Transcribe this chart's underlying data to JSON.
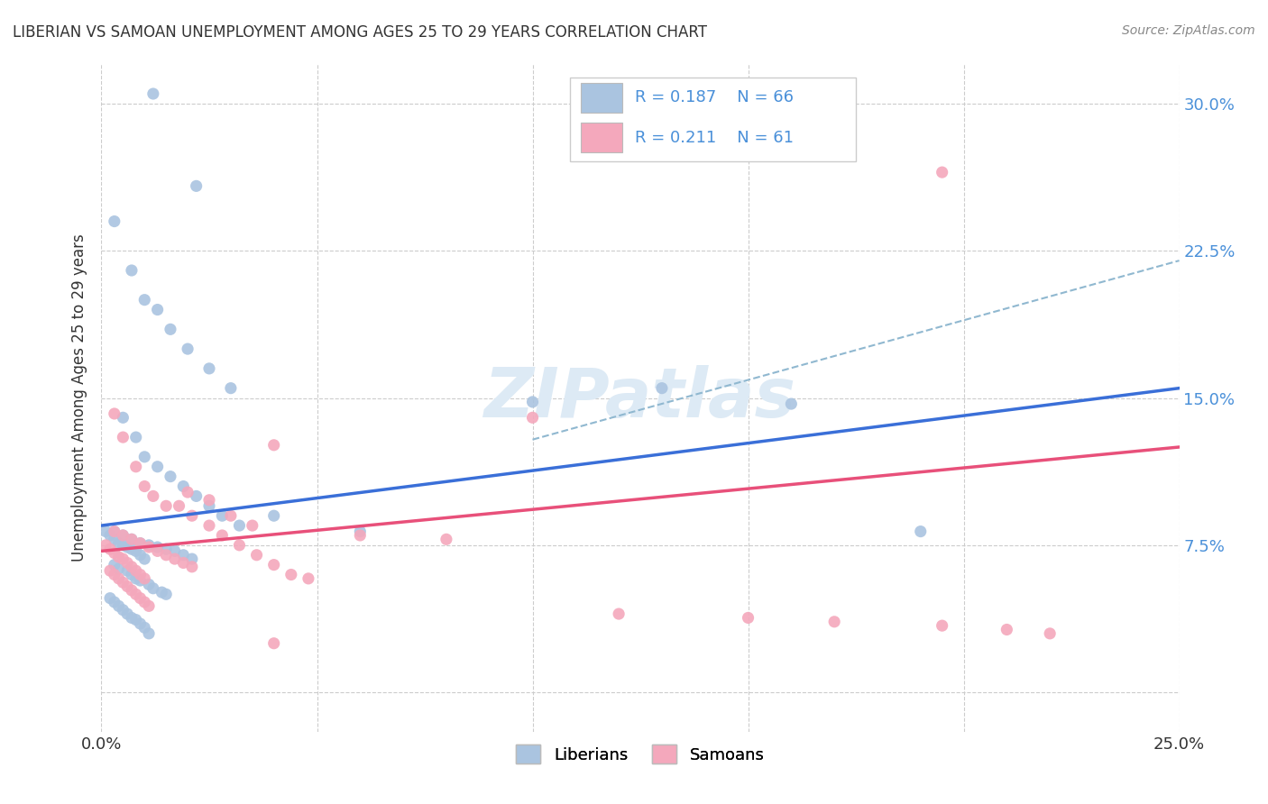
{
  "title": "LIBERIAN VS SAMOAN UNEMPLOYMENT AMONG AGES 25 TO 29 YEARS CORRELATION CHART",
  "source": "Source: ZipAtlas.com",
  "ylabel": "Unemployment Among Ages 25 to 29 years",
  "xlim": [
    0.0,
    0.25
  ],
  "ylim": [
    -0.02,
    0.32
  ],
  "xticks": [
    0.0,
    0.05,
    0.1,
    0.15,
    0.2,
    0.25
  ],
  "xticklabels": [
    "0.0%",
    "",
    "",
    "",
    "",
    "25.0%"
  ],
  "yticks": [
    0.0,
    0.075,
    0.15,
    0.225,
    0.3
  ],
  "yticklabels_left": [
    "",
    "",
    "",
    "",
    ""
  ],
  "yticklabels_right": [
    "",
    "7.5%",
    "15.0%",
    "22.5%",
    "30.0%"
  ],
  "liberian_color": "#aac4e0",
  "samoan_color": "#f4a8bc",
  "liberian_line_color": "#3a6fd8",
  "samoan_line_color": "#e8507a",
  "dashed_line_color": "#90b8d0",
  "watermark": "ZIPatlas",
  "background_color": "#ffffff",
  "legend_r1": "R = 0.187",
  "legend_n1": "N = 66",
  "legend_r2": "R = 0.211",
  "legend_n2": "N = 61",
  "legend_label1": "Liberians",
  "legend_label2": "Samoans",
  "liberian_x": [
    0.012,
    0.022,
    0.003,
    0.007,
    0.01,
    0.013,
    0.016,
    0.02,
    0.025,
    0.03,
    0.005,
    0.008,
    0.01,
    0.013,
    0.016,
    0.019,
    0.022,
    0.025,
    0.028,
    0.032,
    0.003,
    0.005,
    0.007,
    0.009,
    0.011,
    0.013,
    0.015,
    0.017,
    0.019,
    0.021,
    0.003,
    0.004,
    0.006,
    0.007,
    0.008,
    0.009,
    0.011,
    0.012,
    0.014,
    0.015,
    0.002,
    0.003,
    0.004,
    0.005,
    0.006,
    0.007,
    0.008,
    0.009,
    0.01,
    0.011,
    0.001,
    0.002,
    0.003,
    0.004,
    0.005,
    0.006,
    0.007,
    0.008,
    0.009,
    0.01,
    0.04,
    0.06,
    0.1,
    0.13,
    0.16,
    0.19
  ],
  "liberian_y": [
    0.305,
    0.258,
    0.24,
    0.215,
    0.2,
    0.195,
    0.185,
    0.175,
    0.165,
    0.155,
    0.14,
    0.13,
    0.12,
    0.115,
    0.11,
    0.105,
    0.1,
    0.095,
    0.09,
    0.085,
    0.082,
    0.08,
    0.078,
    0.076,
    0.075,
    0.074,
    0.073,
    0.072,
    0.07,
    0.068,
    0.065,
    0.063,
    0.062,
    0.06,
    0.058,
    0.057,
    0.055,
    0.053,
    0.051,
    0.05,
    0.048,
    0.046,
    0.044,
    0.042,
    0.04,
    0.038,
    0.037,
    0.035,
    0.033,
    0.03,
    0.082,
    0.08,
    0.078,
    0.076,
    0.075,
    0.074,
    0.073,
    0.072,
    0.07,
    0.068,
    0.09,
    0.082,
    0.148,
    0.155,
    0.147,
    0.082
  ],
  "samoan_x": [
    0.195,
    0.003,
    0.005,
    0.008,
    0.01,
    0.012,
    0.015,
    0.018,
    0.021,
    0.025,
    0.028,
    0.032,
    0.036,
    0.04,
    0.044,
    0.048,
    0.02,
    0.025,
    0.03,
    0.035,
    0.003,
    0.005,
    0.007,
    0.009,
    0.011,
    0.013,
    0.015,
    0.017,
    0.019,
    0.021,
    0.002,
    0.003,
    0.004,
    0.005,
    0.006,
    0.007,
    0.008,
    0.009,
    0.01,
    0.011,
    0.001,
    0.002,
    0.003,
    0.004,
    0.005,
    0.006,
    0.007,
    0.008,
    0.009,
    0.01,
    0.04,
    0.06,
    0.08,
    0.1,
    0.12,
    0.15,
    0.17,
    0.195,
    0.21,
    0.22,
    0.04
  ],
  "samoan_y": [
    0.265,
    0.142,
    0.13,
    0.115,
    0.105,
    0.1,
    0.095,
    0.095,
    0.09,
    0.085,
    0.08,
    0.075,
    0.07,
    0.065,
    0.06,
    0.058,
    0.102,
    0.098,
    0.09,
    0.085,
    0.082,
    0.08,
    0.078,
    0.076,
    0.074,
    0.072,
    0.07,
    0.068,
    0.066,
    0.064,
    0.062,
    0.06,
    0.058,
    0.056,
    0.054,
    0.052,
    0.05,
    0.048,
    0.046,
    0.044,
    0.075,
    0.073,
    0.071,
    0.069,
    0.068,
    0.066,
    0.064,
    0.062,
    0.06,
    0.058,
    0.126,
    0.08,
    0.078,
    0.14,
    0.04,
    0.038,
    0.036,
    0.034,
    0.032,
    0.03,
    0.025
  ]
}
